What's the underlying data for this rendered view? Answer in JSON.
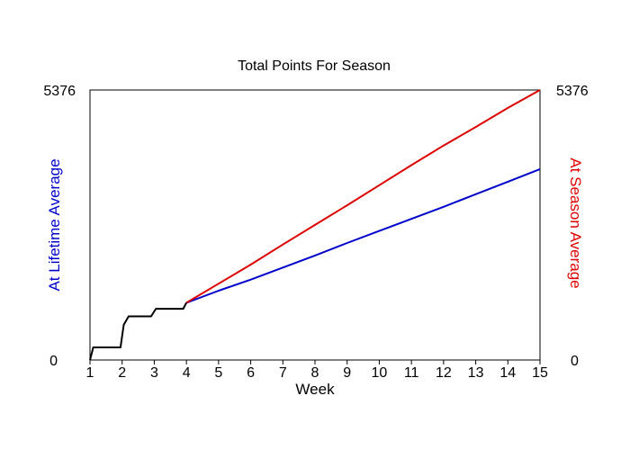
{
  "chart_data": {
    "type": "line",
    "title": "Total Points For Season",
    "xlabel": "Week",
    "ylabel_left": "At Lifetime Average",
    "ylabel_right": "At Season Average",
    "xlim": [
      1,
      15
    ],
    "ylim": [
      0,
      5376
    ],
    "x_ticks": [
      "1",
      "2",
      "3",
      "4",
      "5",
      "6",
      "7",
      "8",
      "9",
      "10",
      "11",
      "12",
      "13",
      "14",
      "15"
    ],
    "y_ticks_left": [
      "0",
      "5376"
    ],
    "y_ticks_right": [
      "0",
      "5376"
    ],
    "grid": false,
    "legend": "none",
    "series": [
      {
        "key": "actual",
        "color": "#000000",
        "points": [
          [
            1.0,
            0
          ],
          [
            1.1,
            250
          ],
          [
            1.5,
            250
          ],
          [
            1.95,
            250
          ],
          [
            2.05,
            700
          ],
          [
            2.2,
            870
          ],
          [
            2.6,
            870
          ],
          [
            2.9,
            870
          ],
          [
            3.05,
            1020
          ],
          [
            3.5,
            1020
          ],
          [
            3.9,
            1020
          ],
          [
            4.0,
            1140
          ]
        ]
      },
      {
        "key": "lifetime_projection",
        "color": "#0000cc",
        "points": [
          [
            4.0,
            1140
          ],
          [
            5,
            1380
          ],
          [
            6,
            1600
          ],
          [
            7,
            1840
          ],
          [
            8,
            2080
          ],
          [
            9,
            2330
          ],
          [
            10,
            2570
          ],
          [
            11,
            2810
          ],
          [
            12,
            3050
          ],
          [
            13,
            3300
          ],
          [
            14,
            3550
          ],
          [
            15,
            3800
          ]
        ]
      },
      {
        "key": "season_projection",
        "color": "#dd0000",
        "points": [
          [
            4.0,
            1140
          ],
          [
            5,
            1520
          ],
          [
            6,
            1900
          ],
          [
            7,
            2300
          ],
          [
            8,
            2690
          ],
          [
            9,
            3080
          ],
          [
            10,
            3480
          ],
          [
            11,
            3880
          ],
          [
            12,
            4270
          ],
          [
            13,
            4640
          ],
          [
            14,
            5020
          ],
          [
            15,
            5376
          ]
        ]
      }
    ],
    "colors": {
      "left_label": "#0000cc",
      "right_label": "#dd0000",
      "axis": "#000000"
    }
  }
}
